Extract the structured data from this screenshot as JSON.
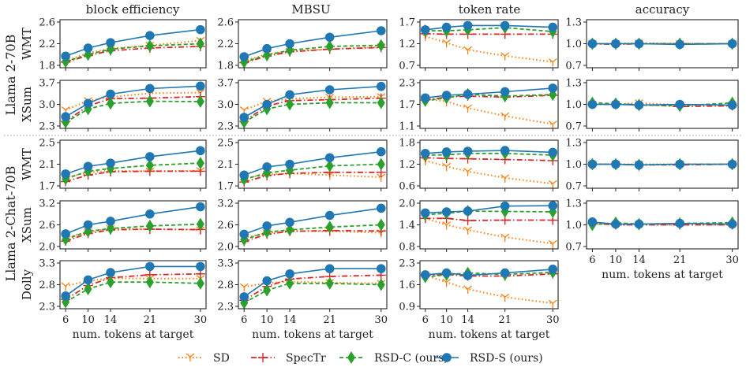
{
  "chart_data": {
    "type": "line",
    "layout": "grid 5 rows x 4 columns",
    "column_titles": [
      "block efficiency",
      "MBSU",
      "token rate",
      "accuracy"
    ],
    "model_groups": [
      {
        "label": "Llama 2-70B",
        "rows": [
          "WMT",
          "XSum"
        ]
      },
      {
        "label": "Llama 2-Chat-70B",
        "rows": [
          "WMT",
          "XSum",
          "Dolly"
        ]
      }
    ],
    "x": [
      6,
      10,
      14,
      21,
      30
    ],
    "x_ticks": [
      "6",
      "10",
      "14",
      "21",
      "30"
    ],
    "xlabel": "num. tokens at target",
    "grid": false,
    "legend": {
      "position": "bottom-center",
      "entries": [
        {
          "name": "SD",
          "color": "#ff7f0e",
          "style": "dotted",
          "marker": "tri-down"
        },
        {
          "name": "SpecTr",
          "color": "#d62728",
          "style": "dashdot",
          "marker": "plus"
        },
        {
          "name": "RSD-C (ours)",
          "color": "#2ca02c",
          "style": "dashed",
          "marker": "diamond"
        },
        {
          "name": "RSD-S (ours)",
          "color": "#1f77b4",
          "style": "solid",
          "marker": "circle"
        }
      ]
    },
    "panels": [
      {
        "row": "Llama 2-70B / WMT",
        "column": "block efficiency",
        "ylim": [
          1.8,
          2.6
        ],
        "yticks": [
          "1.8",
          "2.2",
          "2.6"
        ],
        "series": {
          "SD": [
            1.88,
            2.03,
            2.11,
            2.17,
            2.26
          ],
          "SpecTr": [
            1.86,
            1.98,
            2.07,
            2.12,
            2.15
          ],
          "RSD-C (ours)": [
            1.87,
            2.0,
            2.1,
            2.16,
            2.2
          ],
          "RSD-S (ours)": [
            1.97,
            2.12,
            2.22,
            2.35,
            2.46
          ]
        }
      },
      {
        "row": "Llama 2-70B / WMT",
        "column": "MBSU",
        "ylim": [
          1.8,
          2.6
        ],
        "yticks": [
          "1.8",
          "2.2",
          "2.6"
        ],
        "series": {
          "SD": [
            1.88,
            2.01,
            2.06,
            2.1,
            2.14
          ],
          "SpecTr": [
            1.85,
            1.97,
            2.05,
            2.1,
            2.13
          ],
          "RSD-C (ours)": [
            1.86,
            1.99,
            2.08,
            2.15,
            2.17
          ],
          "RSD-S (ours)": [
            1.96,
            2.11,
            2.2,
            2.32,
            2.44
          ]
        }
      },
      {
        "row": "Llama 2-70B / WMT",
        "column": "token rate",
        "ylim": [
          0.7,
          1.7
        ],
        "yticks": [
          "0.7",
          "1.2",
          "1.7"
        ],
        "series": {
          "SD": [
            1.37,
            1.22,
            1.06,
            0.92,
            0.78
          ],
          "SpecTr": [
            1.43,
            1.42,
            1.42,
            1.42,
            1.42
          ],
          "RSD-C (ours)": [
            1.5,
            1.5,
            1.52,
            1.57,
            1.48
          ],
          "RSD-S (ours)": [
            1.52,
            1.58,
            1.62,
            1.62,
            1.58
          ]
        }
      },
      {
        "row": "Llama 2-70B / WMT",
        "column": "accuracy",
        "ylim": [
          0.7,
          1.3
        ],
        "yticks": [
          "0.7",
          "1.0",
          "1.3"
        ],
        "series": {
          "SD": [
            1.0,
            1.0,
            1.01,
            1.0,
            1.0
          ],
          "SpecTr": [
            1.0,
            0.99,
            1.0,
            1.0,
            1.0
          ],
          "RSD-C (ours)": [
            1.0,
            1.0,
            1.0,
            1.0,
            1.0
          ],
          "RSD-S (ours)": [
            1.0,
            1.0,
            1.0,
            0.99,
            1.0
          ]
        }
      },
      {
        "row": "Llama 2-70B / XSum",
        "column": "block efficiency",
        "ylim": [
          2.3,
          3.7
        ],
        "yticks": [
          "2.3",
          "3.0",
          "3.7"
        ],
        "series": {
          "SD": [
            2.82,
            3.12,
            3.24,
            3.36,
            3.38
          ],
          "SpecTr": [
            2.45,
            2.95,
            3.18,
            3.2,
            3.25
          ],
          "RSD-C (ours)": [
            2.42,
            2.85,
            3.03,
            3.1,
            3.09
          ],
          "RSD-S (ours)": [
            2.6,
            3.03,
            3.33,
            3.51,
            3.59
          ]
        }
      },
      {
        "row": "Llama 2-70B / XSum",
        "column": "MBSU",
        "ylim": [
          2.3,
          3.7
        ],
        "yticks": [
          "2.3",
          "3.0",
          "3.7"
        ],
        "series": {
          "SD": [
            2.82,
            3.1,
            3.18,
            3.23,
            3.25
          ],
          "SpecTr": [
            2.45,
            2.95,
            3.12,
            3.15,
            3.2
          ],
          "RSD-C (ours)": [
            2.42,
            2.85,
            3.0,
            3.05,
            3.05
          ],
          "RSD-S (ours)": [
            2.58,
            3.0,
            3.31,
            3.47,
            3.58
          ]
        }
      },
      {
        "row": "Llama 2-70B / XSum",
        "column": "token rate",
        "ylim": [
          1.1,
          2.3
        ],
        "yticks": [
          "1.1",
          "1.7",
          "2.3"
        ],
        "series": {
          "SD": [
            1.85,
            1.78,
            1.6,
            1.38,
            1.15
          ],
          "SpecTr": [
            1.82,
            1.9,
            1.93,
            1.9,
            1.95
          ],
          "RSD-C (ours)": [
            1.8,
            1.88,
            1.98,
            1.93,
            1.97
          ],
          "RSD-S (ours)": [
            1.88,
            1.95,
            1.98,
            2.05,
            2.15
          ]
        }
      },
      {
        "row": "Llama 2-70B / XSum",
        "column": "accuracy",
        "ylim": [
          0.7,
          1.3
        ],
        "yticks": [
          "0.7",
          "1.0",
          "1.3"
        ],
        "series": {
          "SD": [
            1.0,
            1.0,
            1.02,
            0.99,
            0.99
          ],
          "SpecTr": [
            1.0,
            1.0,
            1.0,
            0.97,
            0.98
          ],
          "RSD-C (ours)": [
            1.02,
            1.01,
            0.99,
            0.98,
            1.02
          ],
          "RSD-S (ours)": [
            1.0,
            1.0,
            0.99,
            1.0,
            0.99
          ]
        }
      },
      {
        "row": "Llama 2-Chat-70B / WMT",
        "column": "block efficiency",
        "ylim": [
          1.7,
          2.5
        ],
        "yticks": [
          "1.7",
          "2.1",
          "2.5"
        ],
        "series": {
          "SD": [
            1.85,
            1.95,
            1.98,
            1.97,
            1.98
          ],
          "SpecTr": [
            1.78,
            1.9,
            1.96,
            1.97,
            1.97
          ],
          "RSD-C (ours)": [
            1.83,
            1.97,
            2.02,
            2.08,
            2.12
          ],
          "RSD-S (ours)": [
            1.92,
            2.06,
            2.12,
            2.24,
            2.35
          ]
        }
      },
      {
        "row": "Llama 2-Chat-70B / WMT",
        "column": "MBSU",
        "ylim": [
          1.7,
          2.5
        ],
        "yticks": [
          "1.7",
          "2.1",
          "2.5"
        ],
        "series": {
          "SD": [
            1.84,
            1.91,
            1.93,
            1.9,
            1.86
          ],
          "SpecTr": [
            1.77,
            1.89,
            1.93,
            1.95,
            1.95
          ],
          "RSD-C (ours)": [
            1.82,
            1.94,
            1.99,
            2.07,
            2.1
          ],
          "RSD-S (ours)": [
            1.9,
            2.05,
            2.1,
            2.22,
            2.33
          ]
        }
      },
      {
        "row": "Llama 2-Chat-70B / WMT",
        "column": "token rate",
        "ylim": [
          0.6,
          1.8
        ],
        "yticks": [
          "0.6",
          "1.2",
          "1.8"
        ],
        "series": {
          "SD": [
            1.3,
            1.14,
            1.0,
            0.82,
            0.66
          ],
          "SpecTr": [
            1.38,
            1.36,
            1.35,
            1.33,
            1.3
          ],
          "RSD-C (ours)": [
            1.45,
            1.46,
            1.5,
            1.5,
            1.45
          ],
          "RSD-S (ours)": [
            1.5,
            1.54,
            1.56,
            1.58,
            1.53
          ]
        }
      },
      {
        "row": "Llama 2-Chat-70B / WMT",
        "column": "accuracy",
        "ylim": [
          0.7,
          1.3
        ],
        "yticks": [
          "0.7",
          "1.0",
          "1.3"
        ],
        "series": {
          "SD": [
            1.0,
            1.0,
            1.0,
            1.0,
            1.0
          ],
          "SpecTr": [
            1.0,
            1.0,
            0.99,
            0.99,
            1.0
          ],
          "RSD-C (ours)": [
            1.0,
            1.0,
            0.99,
            1.0,
            1.0
          ],
          "RSD-S (ours)": [
            1.0,
            1.0,
            0.99,
            1.0,
            1.0
          ]
        }
      },
      {
        "row": "Llama 2-Chat-70B / XSum",
        "column": "block efficiency",
        "ylim": [
          2.0,
          3.2
        ],
        "yticks": [
          "2.0",
          "2.6",
          "3.2"
        ],
        "series": {
          "SD": [
            2.25,
            2.4,
            2.5,
            2.48,
            2.46
          ],
          "SpecTr": [
            2.15,
            2.36,
            2.46,
            2.48,
            2.47
          ],
          "RSD-C (ours)": [
            2.2,
            2.42,
            2.5,
            2.57,
            2.62
          ],
          "RSD-S (ours)": [
            2.35,
            2.6,
            2.7,
            2.9,
            3.1
          ]
        }
      },
      {
        "row": "Llama 2-Chat-70B / XSum",
        "column": "MBSU",
        "ylim": [
          2.0,
          3.2
        ],
        "yticks": [
          "2.0",
          "2.6",
          "3.2"
        ],
        "series": {
          "SD": [
            2.24,
            2.38,
            2.43,
            2.42,
            2.38
          ],
          "SpecTr": [
            2.14,
            2.34,
            2.42,
            2.44,
            2.43
          ],
          "RSD-C (ours)": [
            2.19,
            2.4,
            2.46,
            2.54,
            2.6
          ],
          "RSD-S (ours)": [
            2.34,
            2.57,
            2.67,
            2.86,
            3.06
          ]
        }
      },
      {
        "row": "Llama 2-Chat-70B / XSum",
        "column": "token rate",
        "ylim": [
          0.8,
          2.0
        ],
        "yticks": [
          "0.8",
          "1.4",
          "2.0"
        ],
        "series": {
          "SD": [
            1.58,
            1.4,
            1.26,
            1.06,
            0.88
          ],
          "SpecTr": [
            1.58,
            1.58,
            1.52,
            1.53,
            1.53
          ],
          "RSD-C (ours)": [
            1.68,
            1.72,
            1.78,
            1.77,
            1.76
          ],
          "RSD-S (ours)": [
            1.73,
            1.76,
            1.78,
            1.92,
            1.93
          ]
        }
      },
      {
        "row": "Llama 2-Chat-70B / XSum",
        "column": "accuracy",
        "ylim": [
          0.7,
          1.3
        ],
        "yticks": [
          "0.7",
          "1.0",
          "1.3"
        ],
        "series": {
          "SD": [
            1.03,
            1.0,
            1.0,
            1.0,
            1.0
          ],
          "SpecTr": [
            1.02,
            1.0,
            1.0,
            1.0,
            1.0
          ],
          "RSD-C (ours)": [
            1.0,
            1.03,
            1.01,
            1.02,
            1.03
          ],
          "RSD-S (ours)": [
            1.04,
            1.01,
            1.01,
            1.02,
            1.01
          ]
        }
      },
      {
        "row": "Llama 2-Chat-70B / Dolly",
        "column": "block efficiency",
        "ylim": [
          2.3,
          3.3
        ],
        "yticks": [
          "2.3",
          "2.8",
          "3.3"
        ],
        "series": {
          "SD": [
            2.77,
            2.89,
            2.95,
            2.94,
            2.94
          ],
          "SpecTr": [
            2.46,
            2.78,
            2.96,
            3.03,
            3.05
          ],
          "RSD-C (ours)": [
            2.4,
            2.7,
            2.86,
            2.86,
            2.83
          ],
          "RSD-S (ours)": [
            2.54,
            2.91,
            3.08,
            3.22,
            3.22
          ]
        }
      },
      {
        "row": "Llama 2-Chat-70B / Dolly",
        "column": "MBSU",
        "ylim": [
          2.3,
          3.3
        ],
        "yticks": [
          "2.3",
          "2.8",
          "3.3"
        ],
        "series": {
          "SD": [
            2.75,
            2.84,
            2.87,
            2.85,
            2.83
          ],
          "SpecTr": [
            2.44,
            2.76,
            2.93,
            2.99,
            3.02
          ],
          "RSD-C (ours)": [
            2.38,
            2.67,
            2.83,
            2.83,
            2.8
          ],
          "RSD-S (ours)": [
            2.52,
            2.89,
            3.05,
            3.17,
            3.17
          ]
        }
      },
      {
        "row": "Llama 2-Chat-70B / Dolly",
        "column": "token rate",
        "ylim": [
          0.9,
          2.3
        ],
        "yticks": [
          "0.9",
          "1.6",
          "2.3"
        ],
        "series": {
          "SD": [
            1.9,
            1.68,
            1.46,
            1.2,
            1.0
          ],
          "SpecTr": [
            1.9,
            1.93,
            1.88,
            1.88,
            1.95
          ],
          "RSD-C (ours)": [
            1.85,
            1.92,
            1.98,
            1.93,
            2.0
          ],
          "RSD-S (ours)": [
            1.92,
            1.98,
            1.9,
            1.98,
            2.1
          ]
        }
      }
    ]
  }
}
